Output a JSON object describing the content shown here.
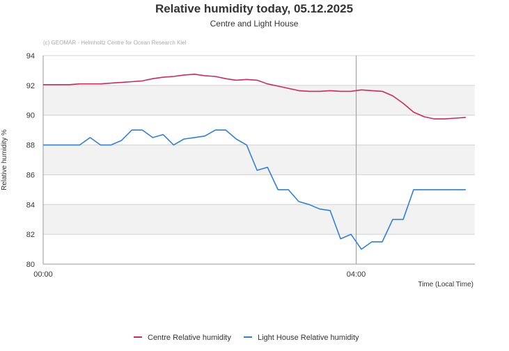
{
  "chart_data": {
    "type": "line",
    "title": "Relative humidity today, 05.12.2025",
    "subtitle": "Centre and Light House",
    "credit": "(c) GEOMAR - Helmholtz Centre for Ocean Research Kiel",
    "y_label": "Relative humidity %",
    "x_label": "Time (Local Time)",
    "x": [
      0,
      12,
      20,
      28,
      36,
      44,
      52,
      60,
      68,
      76,
      84,
      92,
      100,
      108,
      116,
      124,
      132,
      140,
      148,
      156,
      164,
      172,
      180,
      188,
      196,
      204,
      212,
      220,
      228,
      236,
      244,
      252,
      260,
      268,
      276,
      284,
      292,
      300,
      308,
      316,
      324
    ],
    "series": [
      {
        "name": "Centre Relative humidity",
        "color": "#d0285a",
        "values": [
          92.05,
          92.05,
          92.05,
          92.1,
          92.1,
          92.1,
          92.15,
          92.2,
          92.25,
          92.3,
          92.45,
          92.55,
          92.6,
          92.7,
          92.75,
          92.65,
          92.6,
          92.45,
          92.35,
          92.4,
          92.35,
          92.1,
          91.95,
          91.8,
          91.65,
          91.6,
          91.6,
          91.65,
          91.6,
          91.6,
          91.7,
          91.65,
          91.6,
          91.3,
          90.8,
          90.2,
          89.9,
          89.75,
          89.75,
          89.8,
          89.85
        ]
      },
      {
        "name": "Light House Relative humidity",
        "color": "#2e7fdc",
        "values": [
          88,
          88,
          88,
          88,
          88.5,
          88,
          88,
          88.3,
          89,
          89,
          88.5,
          88.7,
          88,
          88.4,
          88.5,
          88.6,
          89,
          89,
          88.4,
          88,
          86.3,
          86.5,
          85,
          85,
          84.2,
          84,
          83.7,
          83.6,
          81.7,
          82,
          81,
          81.5,
          81.5,
          83,
          83,
          85,
          85,
          85,
          85,
          85,
          85
        ]
      }
    ],
    "xlim": [
      0,
      331
    ],
    "xticks": [
      {
        "value": 0,
        "label": "00:00"
      },
      {
        "value": 240,
        "label": "04:00"
      }
    ],
    "ylim": [
      80,
      94
    ],
    "yticks": [
      80,
      82,
      84,
      86,
      88,
      90,
      92,
      94
    ],
    "grid": true,
    "legend": "bottom"
  }
}
